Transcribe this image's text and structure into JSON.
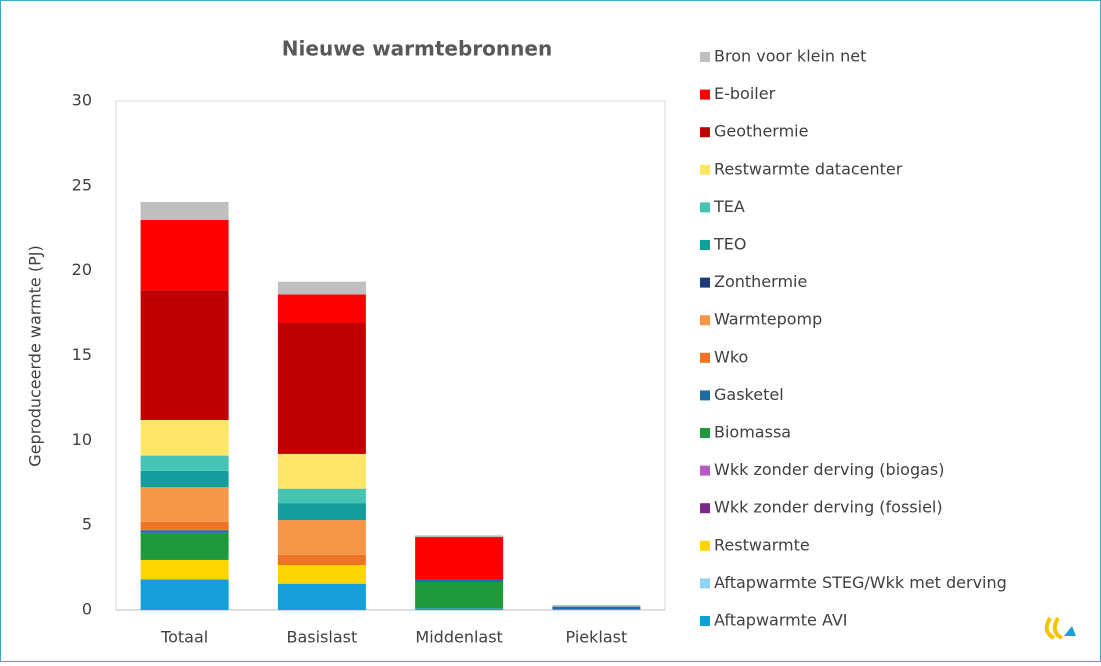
{
  "chart_data": {
    "type": "stacked_bar",
    "title": "Nieuwe warmtebronnen",
    "y_label": "Geproduceerde warmte (PJ)",
    "categories": [
      "Totaal",
      "Basislast",
      "Middenlast",
      "Pieklast"
    ],
    "ylim": [
      0,
      30
    ],
    "yticks": [
      0,
      5,
      10,
      15,
      20,
      25,
      30
    ],
    "grid": false,
    "series": [
      {
        "name": "Aftapwarmte AVI",
        "color": "#159fd8",
        "values": [
          1.8,
          1.55,
          0.1,
          0.05
        ]
      },
      {
        "name": "Aftapwarmte STEG/Wkk met derving",
        "color": "#8fd4f2",
        "values": [
          0,
          0,
          0,
          0
        ]
      },
      {
        "name": "Restwarmte",
        "color": "#ffd500",
        "values": [
          1.15,
          1.1,
          0,
          0
        ]
      },
      {
        "name": "Wkk zonder derving (fossiel)",
        "color": "#7a2a8a",
        "values": [
          0,
          0,
          0,
          0
        ]
      },
      {
        "name": "Wkk zonder derving (biogas)",
        "color": "#b45cc2",
        "values": [
          0,
          0,
          0,
          0
        ]
      },
      {
        "name": "Biomassa",
        "color": "#1e9a3a",
        "values": [
          1.6,
          0,
          1.55,
          0
        ]
      },
      {
        "name": "Gasketel",
        "color": "#1a6fa0",
        "values": [
          0.15,
          0,
          0.15,
          0.15
        ]
      },
      {
        "name": "Wko",
        "color": "#ef7424",
        "values": [
          0.5,
          0.6,
          0,
          0
        ]
      },
      {
        "name": "Warmtepomp",
        "color": "#f79646",
        "values": [
          2.05,
          2.05,
          0,
          0
        ]
      },
      {
        "name": "Zonthermie",
        "color": "#1f3a7a",
        "values": [
          0,
          0,
          0,
          0
        ]
      },
      {
        "name": "TEO",
        "color": "#139d9d",
        "values": [
          0.95,
          1.0,
          0,
          0
        ]
      },
      {
        "name": "TEA",
        "color": "#45c4b4",
        "values": [
          0.9,
          0.85,
          0,
          0
        ]
      },
      {
        "name": "Restwarmte datacenter",
        "color": "#ffe566",
        "values": [
          2.1,
          2.05,
          0,
          0
        ]
      },
      {
        "name": "Geothermie",
        "color": "#c00000",
        "values": [
          7.65,
          7.75,
          0,
          0
        ]
      },
      {
        "name": "E-boiler",
        "color": "#ff0000",
        "values": [
          4.15,
          1.65,
          2.5,
          0
        ]
      },
      {
        "name": "Bron voor klein net",
        "color": "#bfbfbf",
        "values": [
          1.05,
          0.75,
          0.1,
          0.1
        ]
      }
    ]
  }
}
